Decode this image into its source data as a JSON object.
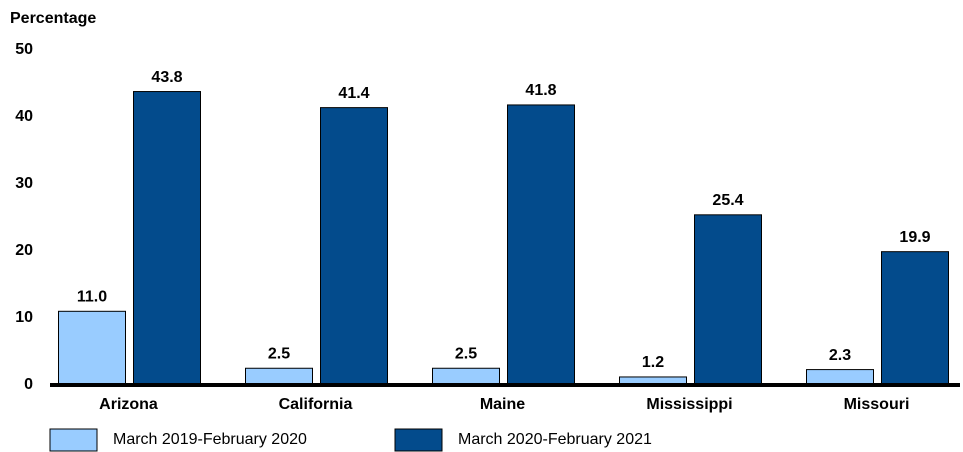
{
  "chart_data": {
    "type": "bar",
    "y_label": "Percentage",
    "categories": [
      "Arizona",
      "California",
      "Maine",
      "Mississippi",
      "Missouri"
    ],
    "series": [
      {
        "name": "March 2019-February 2020",
        "color": "#99ccff",
        "values": [
          11.0,
          2.5,
          2.5,
          1.2,
          2.3
        ],
        "value_labels": [
          "11.0",
          "2.5",
          "2.5",
          "1.2",
          "2.3"
        ]
      },
      {
        "name": "March 2020-February 2021",
        "color": "#034b8c",
        "values": [
          43.8,
          41.4,
          41.8,
          25.4,
          19.9
        ],
        "value_labels": [
          "43.8",
          "41.4",
          "41.8",
          "25.4",
          "19.9"
        ]
      }
    ],
    "ylim": [
      0,
      50
    ],
    "yticks": [
      0,
      10,
      20,
      30,
      40,
      50
    ],
    "grid": false
  }
}
